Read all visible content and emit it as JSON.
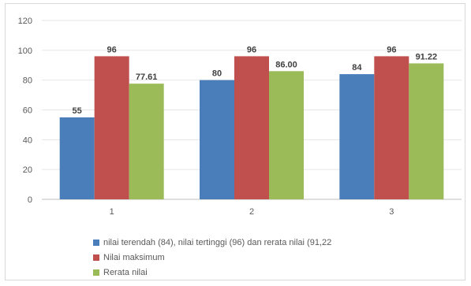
{
  "chart_data": {
    "type": "bar",
    "categories": [
      "1",
      "2",
      "3"
    ],
    "series": [
      {
        "name": "nilai terendah (84), nilai tertinggi (96) dan rerata nilai (91,22",
        "color": "#4a7ebb",
        "values": [
          55,
          80,
          84
        ],
        "labels": [
          "55",
          "80",
          "84"
        ]
      },
      {
        "name": "Nilai maksimum",
        "color": "#c0504d",
        "values": [
          96,
          96,
          96
        ],
        "labels": [
          "96",
          "96",
          "96"
        ]
      },
      {
        "name": "Rerata nilai",
        "color": "#9bbb59",
        "values": [
          77.61,
          86.0,
          91.22
        ],
        "labels": [
          "77.61",
          "86.00",
          "91.22"
        ]
      }
    ],
    "yticks": [
      "0",
      "20",
      "40",
      "60",
      "80",
      "100",
      "120"
    ],
    "ylim": [
      0,
      120
    ],
    "grid": true,
    "legend_position": "bottom"
  }
}
